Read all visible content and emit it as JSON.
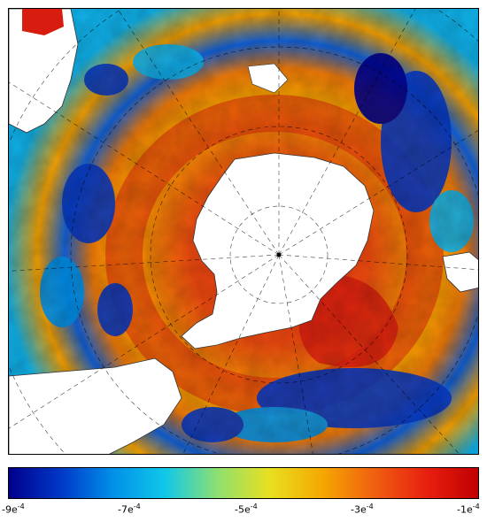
{
  "map": {
    "projection": "south-polar-stereographic",
    "colormap": "jet",
    "land_color": "#ffffff",
    "coastline_color": "#000000",
    "gridline_color": "#000000"
  },
  "colorbar": {
    "colors": [
      "#00008b",
      "#0038c8",
      "#0090e8",
      "#10c8e8",
      "#8ee070",
      "#e8e020",
      "#f5a800",
      "#f06010",
      "#e82010",
      "#c00000"
    ],
    "labels": [
      {
        "base": "-9e",
        "exp": "-4"
      },
      {
        "base": "-7e",
        "exp": "-4"
      },
      {
        "base": "-5e",
        "exp": "-4"
      },
      {
        "base": "-3e",
        "exp": "-4"
      },
      {
        "base": "-1e",
        "exp": "-4"
      }
    ]
  }
}
